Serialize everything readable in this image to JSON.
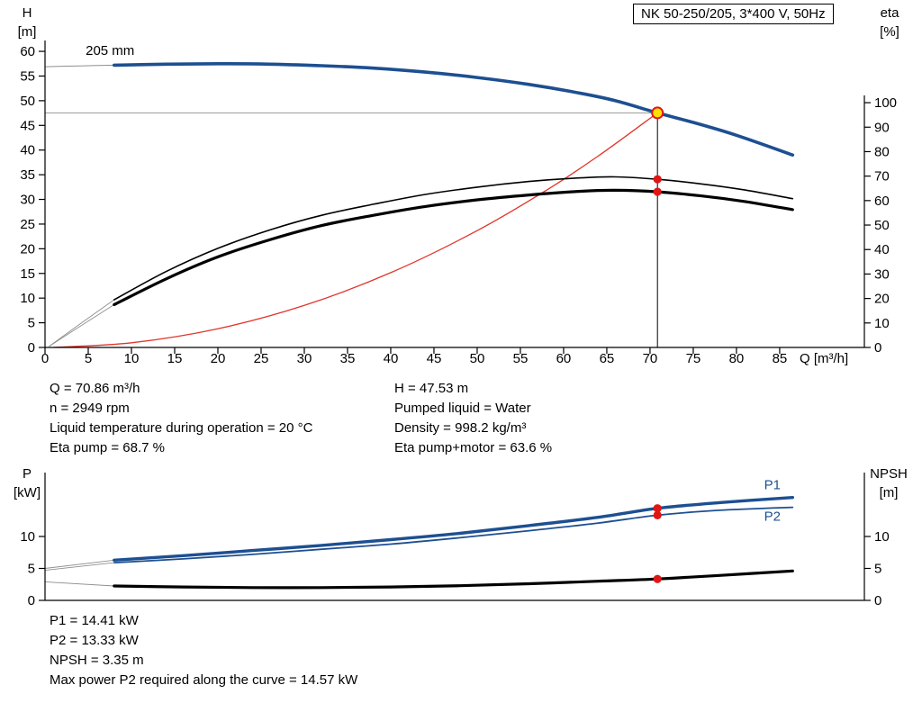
{
  "title_box": "NK 50-250/205, 3*400 V, 50Hz",
  "colors": {
    "blue": "#1d4f91",
    "red": "#e0352b",
    "black": "#000000",
    "grey": "#8f8f8f",
    "marker_red": "#e01616",
    "marker_yellow": "#ffdf00"
  },
  "chart_data": [
    {
      "type": "line",
      "name": "performance-curve",
      "title": "NK 50-250/205, 3*400 V, 50Hz",
      "x": {
        "label": "Q [m³/h]",
        "label_q": 87.3,
        "min": 0,
        "max": 94.8,
        "ticks": [
          0,
          5,
          10,
          15,
          20,
          25,
          30,
          35,
          40,
          45,
          50,
          55,
          60,
          65,
          70,
          75,
          80,
          85
        ],
        "show_tick_labels": true
      },
      "y_left": {
        "label": "H",
        "unit": "[m]",
        "min": 0,
        "max": 62.2,
        "ticks": [
          0,
          5,
          10,
          15,
          20,
          25,
          30,
          35,
          40,
          45,
          50,
          55,
          60
        ]
      },
      "y_right": {
        "label": "eta",
        "unit": "[%]",
        "min": 0,
        "max": 125.4,
        "ticks": [
          0,
          10,
          20,
          30,
          40,
          50,
          60,
          70,
          80,
          90,
          100
        ]
      },
      "impeller_diameter": "205 mm",
      "series": [
        {
          "name": "head-curve-extension",
          "axis": "left",
          "color": "grey",
          "width": 1,
          "points": [
            [
              0,
              56.9
            ],
            [
              4,
              57.05
            ],
            [
              8,
              57.2
            ]
          ]
        },
        {
          "name": "eta-pump-extension",
          "axis": "right",
          "color": "grey",
          "width": 0.9,
          "points": [
            [
              0.5,
              0.5
            ],
            [
              4,
              9.5
            ],
            [
              8,
              19.5
            ]
          ]
        },
        {
          "name": "eta-pump-motor-extension",
          "axis": "right",
          "color": "grey",
          "width": 0.9,
          "points": [
            [
              0.5,
              0.5
            ],
            [
              4,
              8.5
            ],
            [
              8,
              17.5
            ]
          ]
        },
        {
          "name": "system-curve",
          "axis": "left",
          "color": "red",
          "width": 1.3,
          "points": [
            [
              1,
              0.01
            ],
            [
              10,
              0.95
            ],
            [
              20,
              3.79
            ],
            [
              30,
              8.52
            ],
            [
              40,
              15.15
            ],
            [
              50,
              23.67
            ],
            [
              58,
              31.85
            ],
            [
              64,
              38.78
            ],
            [
              70.86,
              47.53
            ]
          ]
        },
        {
          "name": "eta-pump-curve",
          "axis": "right",
          "color": "black",
          "width": 1.6,
          "points": [
            [
              8,
              19.5
            ],
            [
              14,
              31
            ],
            [
              20,
              40.5
            ],
            [
              26,
              48
            ],
            [
              32,
              54
            ],
            [
              38,
              58.5
            ],
            [
              44,
              62.5
            ],
            [
              50,
              65.5
            ],
            [
              56,
              67.8
            ],
            [
              62,
              69.3
            ],
            [
              66,
              69.7
            ],
            [
              70.86,
              68.7
            ],
            [
              76,
              66.8
            ],
            [
              81,
              64.3
            ],
            [
              86.5,
              60.8
            ]
          ]
        },
        {
          "name": "eta-pump-motor-curve",
          "axis": "right",
          "color": "black",
          "width": 3.2,
          "points": [
            [
              8,
              17.5
            ],
            [
              14,
              28
            ],
            [
              20,
              37
            ],
            [
              26,
              44
            ],
            [
              32,
              49.8
            ],
            [
              38,
              54
            ],
            [
              44,
              57.6
            ],
            [
              50,
              60.3
            ],
            [
              56,
              62.3
            ],
            [
              62,
              63.8
            ],
            [
              66,
              64.2
            ],
            [
              70.86,
              63.6
            ],
            [
              76,
              61.9
            ],
            [
              81,
              59.6
            ],
            [
              86.5,
              56.3
            ]
          ]
        },
        {
          "name": "head-curve-205mm",
          "axis": "left",
          "color": "blue",
          "width": 3.6,
          "points": [
            [
              8,
              57.2
            ],
            [
              14,
              57.4
            ],
            [
              20,
              57.5
            ],
            [
              26,
              57.4
            ],
            [
              32,
              57.1
            ],
            [
              38,
              56.6
            ],
            [
              44,
              55.8
            ],
            [
              50,
              54.7
            ],
            [
              56,
              53.3
            ],
            [
              62,
              51.5
            ],
            [
              66,
              50.0
            ],
            [
              70.86,
              47.53
            ],
            [
              75,
              45.6
            ],
            [
              80,
              43.0
            ],
            [
              86.5,
              39.0
            ]
          ]
        }
      ],
      "guides": [
        {
          "type": "h",
          "axis": "left",
          "v": 47.53,
          "q_end": 70.86
        },
        {
          "type": "v",
          "axis": "left",
          "q": 70.86,
          "v_top": 47.53
        }
      ],
      "markers": [
        {
          "name": "duty-point-head",
          "style": "yellow",
          "axis": "left",
          "q": 70.86,
          "v": 47.53
        },
        {
          "name": "duty-point-eta-pump",
          "style": "red",
          "axis": "right",
          "q": 70.86,
          "v": 68.7
        },
        {
          "name": "duty-point-eta-pump-motor",
          "style": "red",
          "axis": "right",
          "q": 70.86,
          "v": 63.6
        }
      ],
      "annotations": [
        {
          "name": "impeller-label",
          "text": "205 mm",
          "q": 4.7,
          "v": 59.3,
          "axis": "left",
          "color": "black"
        }
      ],
      "duty_point": {
        "Q": 70.86,
        "H": 47.53,
        "eta_pump": 68.7,
        "eta_pump_motor": 63.6
      }
    },
    {
      "type": "line",
      "name": "power-npsh-curve",
      "x": {
        "label": "",
        "min": 0,
        "max": 94.8,
        "ticks": [],
        "show_tick_labels": false
      },
      "y_left": {
        "label": "P",
        "unit": "[kW]",
        "min": 0,
        "max": 20,
        "ticks": [
          0,
          5,
          10
        ]
      },
      "y_right": {
        "label": "NPSH",
        "unit": "[m]",
        "min": 0,
        "max": 20,
        "ticks": [
          0,
          5,
          10
        ]
      },
      "series": [
        {
          "name": "p1-extension",
          "axis": "left",
          "color": "grey",
          "width": 0.9,
          "points": [
            [
              0,
              5.0
            ],
            [
              8,
              6.3
            ]
          ]
        },
        {
          "name": "p2-extension",
          "axis": "left",
          "color": "grey",
          "width": 0.9,
          "points": [
            [
              0,
              4.7
            ],
            [
              8,
              5.9
            ]
          ]
        },
        {
          "name": "npsh-extension",
          "axis": "left",
          "color": "grey",
          "width": 0.9,
          "points": [
            [
              0,
              2.9
            ],
            [
              8,
              2.25
            ]
          ]
        },
        {
          "name": "p1-curve",
          "axis": "left",
          "color": "blue",
          "width": 3.4,
          "points": [
            [
              8,
              6.3
            ],
            [
              16,
              7.0
            ],
            [
              24,
              7.8
            ],
            [
              32,
              8.6
            ],
            [
              40,
              9.5
            ],
            [
              48,
              10.5
            ],
            [
              56,
              11.7
            ],
            [
              64,
              13.0
            ],
            [
              70.86,
              14.41
            ],
            [
              78,
              15.3
            ],
            [
              86.5,
              16.1
            ]
          ]
        },
        {
          "name": "p2-curve",
          "axis": "left",
          "color": "blue",
          "width": 1.8,
          "points": [
            [
              8,
              5.9
            ],
            [
              16,
              6.5
            ],
            [
              24,
              7.2
            ],
            [
              32,
              8.0
            ],
            [
              40,
              8.8
            ],
            [
              48,
              9.8
            ],
            [
              56,
              10.9
            ],
            [
              64,
              12.1
            ],
            [
              70.86,
              13.33
            ],
            [
              78,
              14.1
            ],
            [
              86.5,
              14.57
            ]
          ]
        },
        {
          "name": "npsh-curve",
          "axis": "left",
          "color": "black",
          "width": 3.2,
          "points": [
            [
              8,
              2.25
            ],
            [
              16,
              2.1
            ],
            [
              24,
              2.0
            ],
            [
              32,
              2.0
            ],
            [
              40,
              2.1
            ],
            [
              48,
              2.3
            ],
            [
              56,
              2.6
            ],
            [
              64,
              3.0
            ],
            [
              70.86,
              3.35
            ],
            [
              78,
              3.9
            ],
            [
              86.5,
              4.6
            ]
          ]
        }
      ],
      "guides": [],
      "markers": [
        {
          "name": "duty-point-p1",
          "style": "red",
          "axis": "left",
          "q": 70.86,
          "v": 14.41
        },
        {
          "name": "duty-point-p2",
          "style": "red",
          "axis": "left",
          "q": 70.86,
          "v": 13.33
        },
        {
          "name": "duty-point-npsh",
          "style": "red",
          "axis": "left",
          "q": 70.86,
          "v": 3.35
        }
      ],
      "annotations": [
        {
          "name": "p1-label",
          "text": "P1",
          "q": 83.2,
          "v": 17.4,
          "axis": "left",
          "color": "blue"
        },
        {
          "name": "p2-label",
          "text": "P2",
          "q": 83.2,
          "v": 12.5,
          "axis": "left",
          "color": "blue"
        }
      ],
      "duty_point": {
        "Q": 70.86,
        "P1": 14.41,
        "P2": 13.33,
        "NPSH": 3.35
      }
    }
  ],
  "info": {
    "rows": [
      {
        "left": "Q = 70.86 m³/h",
        "right": "H = 47.53 m"
      },
      {
        "left": "n = 2949 rpm",
        "right": "Pumped liquid = Water"
      },
      {
        "left": "Liquid temperature during operation = 20 °C",
        "right": "Density = 998.2 kg/m³"
      },
      {
        "left": "Eta pump = 68.7 %",
        "right": "Eta pump+motor = 63.6 %"
      }
    ]
  },
  "results": {
    "lines": [
      "P1 = 14.41 kW",
      "P2 = 13.33 kW",
      "NPSH = 3.35 m",
      "Max power P2 required along the curve = 14.57 kW"
    ]
  }
}
